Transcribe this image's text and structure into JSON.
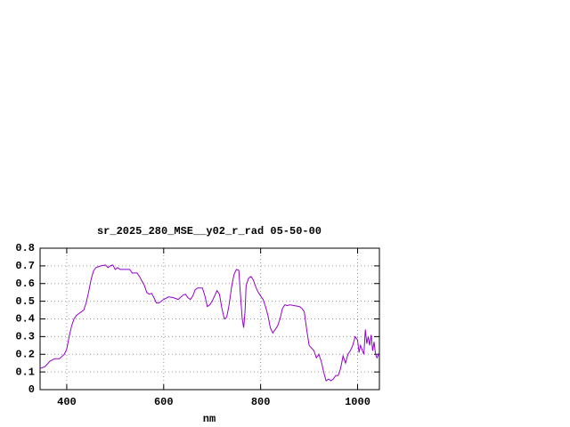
{
  "chart_data": {
    "type": "line",
    "title": "sr_2025_280_MSE__y02_r_rad 05-50-00",
    "xlabel": "nm",
    "xlim": [
      345,
      1045
    ],
    "ylim": [
      0,
      0.8
    ],
    "xticks": [
      400,
      600,
      800,
      1000
    ],
    "yticks": [
      0,
      0.1,
      0.2,
      0.3,
      0.4,
      0.5,
      0.6,
      0.7,
      0.8
    ],
    "grid": true,
    "x": [
      345,
      355,
      365,
      375,
      385,
      395,
      400,
      405,
      410,
      415,
      420,
      430,
      435,
      440,
      445,
      450,
      455,
      460,
      470,
      480,
      485,
      490,
      495,
      500,
      505,
      510,
      520,
      530,
      535,
      545,
      550,
      560,
      565,
      570,
      575,
      580,
      585,
      590,
      600,
      610,
      620,
      630,
      640,
      645,
      650,
      655,
      660,
      665,
      670,
      680,
      685,
      690,
      695,
      700,
      705,
      710,
      715,
      720,
      725,
      730,
      735,
      740,
      745,
      750,
      755,
      758,
      762,
      765,
      768,
      770,
      775,
      780,
      785,
      790,
      795,
      800,
      805,
      810,
      815,
      820,
      825,
      830,
      835,
      840,
      845,
      850,
      855,
      860,
      870,
      880,
      885,
      890,
      895,
      900,
      910,
      915,
      920,
      925,
      930,
      935,
      940,
      945,
      950,
      955,
      960,
      965,
      970,
      975,
      980,
      985,
      990,
      995,
      1000,
      1003,
      1006,
      1010,
      1013,
      1016,
      1019,
      1022,
      1025,
      1028,
      1031,
      1034,
      1037,
      1040,
      1045
    ],
    "series": [
      {
        "color": "#9400d3",
        "values": [
          0.12,
          0.13,
          0.16,
          0.175,
          0.175,
          0.2,
          0.23,
          0.3,
          0.36,
          0.4,
          0.42,
          0.44,
          0.45,
          0.49,
          0.55,
          0.62,
          0.67,
          0.69,
          0.7,
          0.705,
          0.69,
          0.7,
          0.705,
          0.68,
          0.69,
          0.68,
          0.68,
          0.68,
          0.66,
          0.66,
          0.64,
          0.59,
          0.55,
          0.54,
          0.545,
          0.52,
          0.49,
          0.49,
          0.51,
          0.525,
          0.52,
          0.51,
          0.535,
          0.54,
          0.52,
          0.51,
          0.53,
          0.565,
          0.575,
          0.575,
          0.53,
          0.47,
          0.48,
          0.5,
          0.53,
          0.56,
          0.54,
          0.46,
          0.4,
          0.41,
          0.48,
          0.58,
          0.65,
          0.68,
          0.675,
          0.55,
          0.4,
          0.35,
          0.45,
          0.59,
          0.63,
          0.64,
          0.62,
          0.58,
          0.55,
          0.53,
          0.51,
          0.47,
          0.42,
          0.35,
          0.32,
          0.34,
          0.36,
          0.4,
          0.46,
          0.48,
          0.475,
          0.48,
          0.475,
          0.47,
          0.46,
          0.44,
          0.34,
          0.25,
          0.22,
          0.18,
          0.2,
          0.16,
          0.1,
          0.05,
          0.06,
          0.05,
          0.06,
          0.08,
          0.08,
          0.12,
          0.19,
          0.15,
          0.2,
          0.22,
          0.25,
          0.3,
          0.28,
          0.21,
          0.25,
          0.22,
          0.2,
          0.34,
          0.26,
          0.3,
          0.25,
          0.31,
          0.22,
          0.27,
          0.2,
          0.18,
          0.21
        ]
      }
    ]
  }
}
